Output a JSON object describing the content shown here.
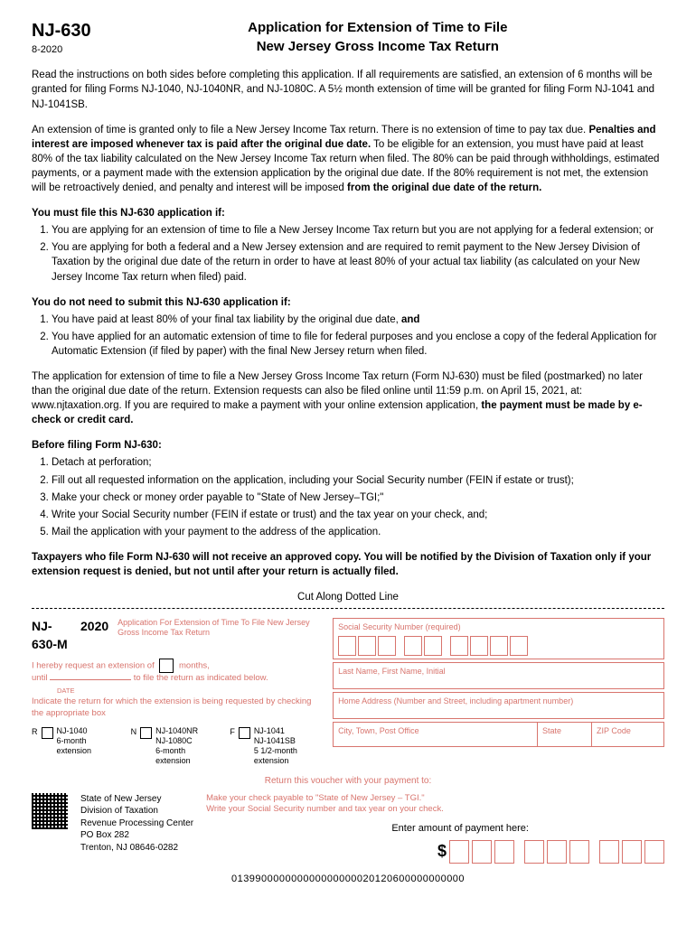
{
  "header": {
    "form_number": "NJ-630",
    "revision": "8-2020",
    "title_line1": "Application for Extension of Time to File",
    "title_line2": "New Jersey Gross Income Tax Return"
  },
  "intro": {
    "p1": "Read the instructions on both sides before completing this application. If all requirements are satisfied, an extension of 6 months will be granted for filing Forms NJ-1040, NJ-1040NR, and NJ-1080C. A 5½ month extension of time will be granted for filing Form NJ-1041 and NJ-1041SB.",
    "p2_a": "An extension of time is granted only to file a New Jersey Income Tax return. There is no extension of time to pay tax due. ",
    "p2_bold1": "Penalties and interest are imposed whenever tax is paid after the original due date.",
    "p2_b": " To be eligible for an extension, you must have paid at least 80% of the tax liability calculated on the New Jersey Income Tax return when filed. The 80% can be paid through withholdings, estimated payments, or a payment made with the extension application by the original due date. If the 80% requirement is not met, the extension will be retroactively denied, and penalty and interest will be imposed ",
    "p2_bold2": "from the original due date of the return."
  },
  "must_file": {
    "head": "You must file this NJ-630 application if:",
    "item1": "You are applying for an extension of time to file a New Jersey Income Tax return but you are not applying for a federal extension; or",
    "item2": "You are applying for both a federal and a New Jersey extension and are required to remit payment to the New Jersey Division of Taxation by the original due date of the return in order to have at least 80% of your actual tax liability (as calculated on your New Jersey Income Tax return when filed) paid."
  },
  "no_need": {
    "head": "You do not need to submit this NJ-630 application if:",
    "item1_a": "You have paid at least 80% of your final tax liability by the original due date, ",
    "item1_bold": "and",
    "item2": "You have applied for an automatic extension of time to file for federal purposes and you enclose a copy of the federal Application for Automatic Extension (if filed by paper) with the final New Jersey return when filed."
  },
  "deadline": {
    "p_a": "The application for extension of time to file a New Jersey Gross Income Tax return (Form NJ-630) must be filed (postmarked) no later than the original due date of the return. Extension requests can also be filed online until 11:59 p.m. on April 15, 2021, at: www.njtaxation.org. If you are required to make a payment with your online extension application, ",
    "p_bold": "the payment must be made by e-check or credit card."
  },
  "before": {
    "head": "Before filing Form NJ-630:",
    "item1": "Detach at perforation;",
    "item2": "Fill out all requested information on the application, including your Social Security number (FEIN if estate or trust);",
    "item3": "Make your check or money order payable to \"State of New Jersey–TGI;\"",
    "item4": "Write your Social Security number (FEIN if estate or trust) and the tax year on your check, and;",
    "item5": "Mail the application with your payment to the address of the application."
  },
  "notice": "Taxpayers who file Form NJ-630 will not receive an approved copy. You will be notified by the Division of Taxation only if your extension request is denied, but not until after your return is actually filed.",
  "cut_label": "Cut Along Dotted Line",
  "voucher": {
    "form_num": "NJ-630-M",
    "year": "2020",
    "subtitle": "Application For Extension of Time To File New Jersey Gross Income Tax Return",
    "req_a": "I hereby request an extension of",
    "req_b": "months,",
    "req_c": "until",
    "req_d": "to file the return as indicated below.",
    "date_lbl": "DATE",
    "indicate": "Indicate the return for which the extension is being requested by checking the appropriate box",
    "chk_r": "R",
    "chk_r_forms": "NJ-1040",
    "chk_r_ext": "6-month extension",
    "chk_n": "N",
    "chk_n_forms": "NJ-1040NR\nNJ-1080C",
    "chk_n_ext": "6-month extension",
    "chk_f": "F",
    "chk_f_forms": "NJ-1041\nNJ-1041SB",
    "chk_f_ext": "5 1/2-month extension",
    "ssn_lbl": "Social Security Number (required)",
    "name_lbl": "Last Name, First Name, Initial",
    "addr_lbl": "Home Address (Number and Street, including apartment number)",
    "city_lbl": "City, Town, Post Office",
    "state_lbl": "State",
    "zip_lbl": "ZIP Code",
    "return_voucher": "Return this voucher with your payment to:",
    "mail_l1": "State of New Jersey",
    "mail_l2": "Division of Taxation",
    "mail_l3": "Revenue Processing Center",
    "mail_l4": "PO Box 282",
    "mail_l5": "Trenton, NJ 08646-0282",
    "payable_l1": "Make your check payable to \"State of New Jersey – TGI.\"",
    "payable_l2": "Write your Social Security number and tax year on your check.",
    "amt_lbl": "Enter amount of payment here:",
    "dollar": "$",
    "scanline": "013990000000000000000020120600000000000"
  },
  "colors": {
    "pink": "#d8746d",
    "black": "#000000"
  }
}
